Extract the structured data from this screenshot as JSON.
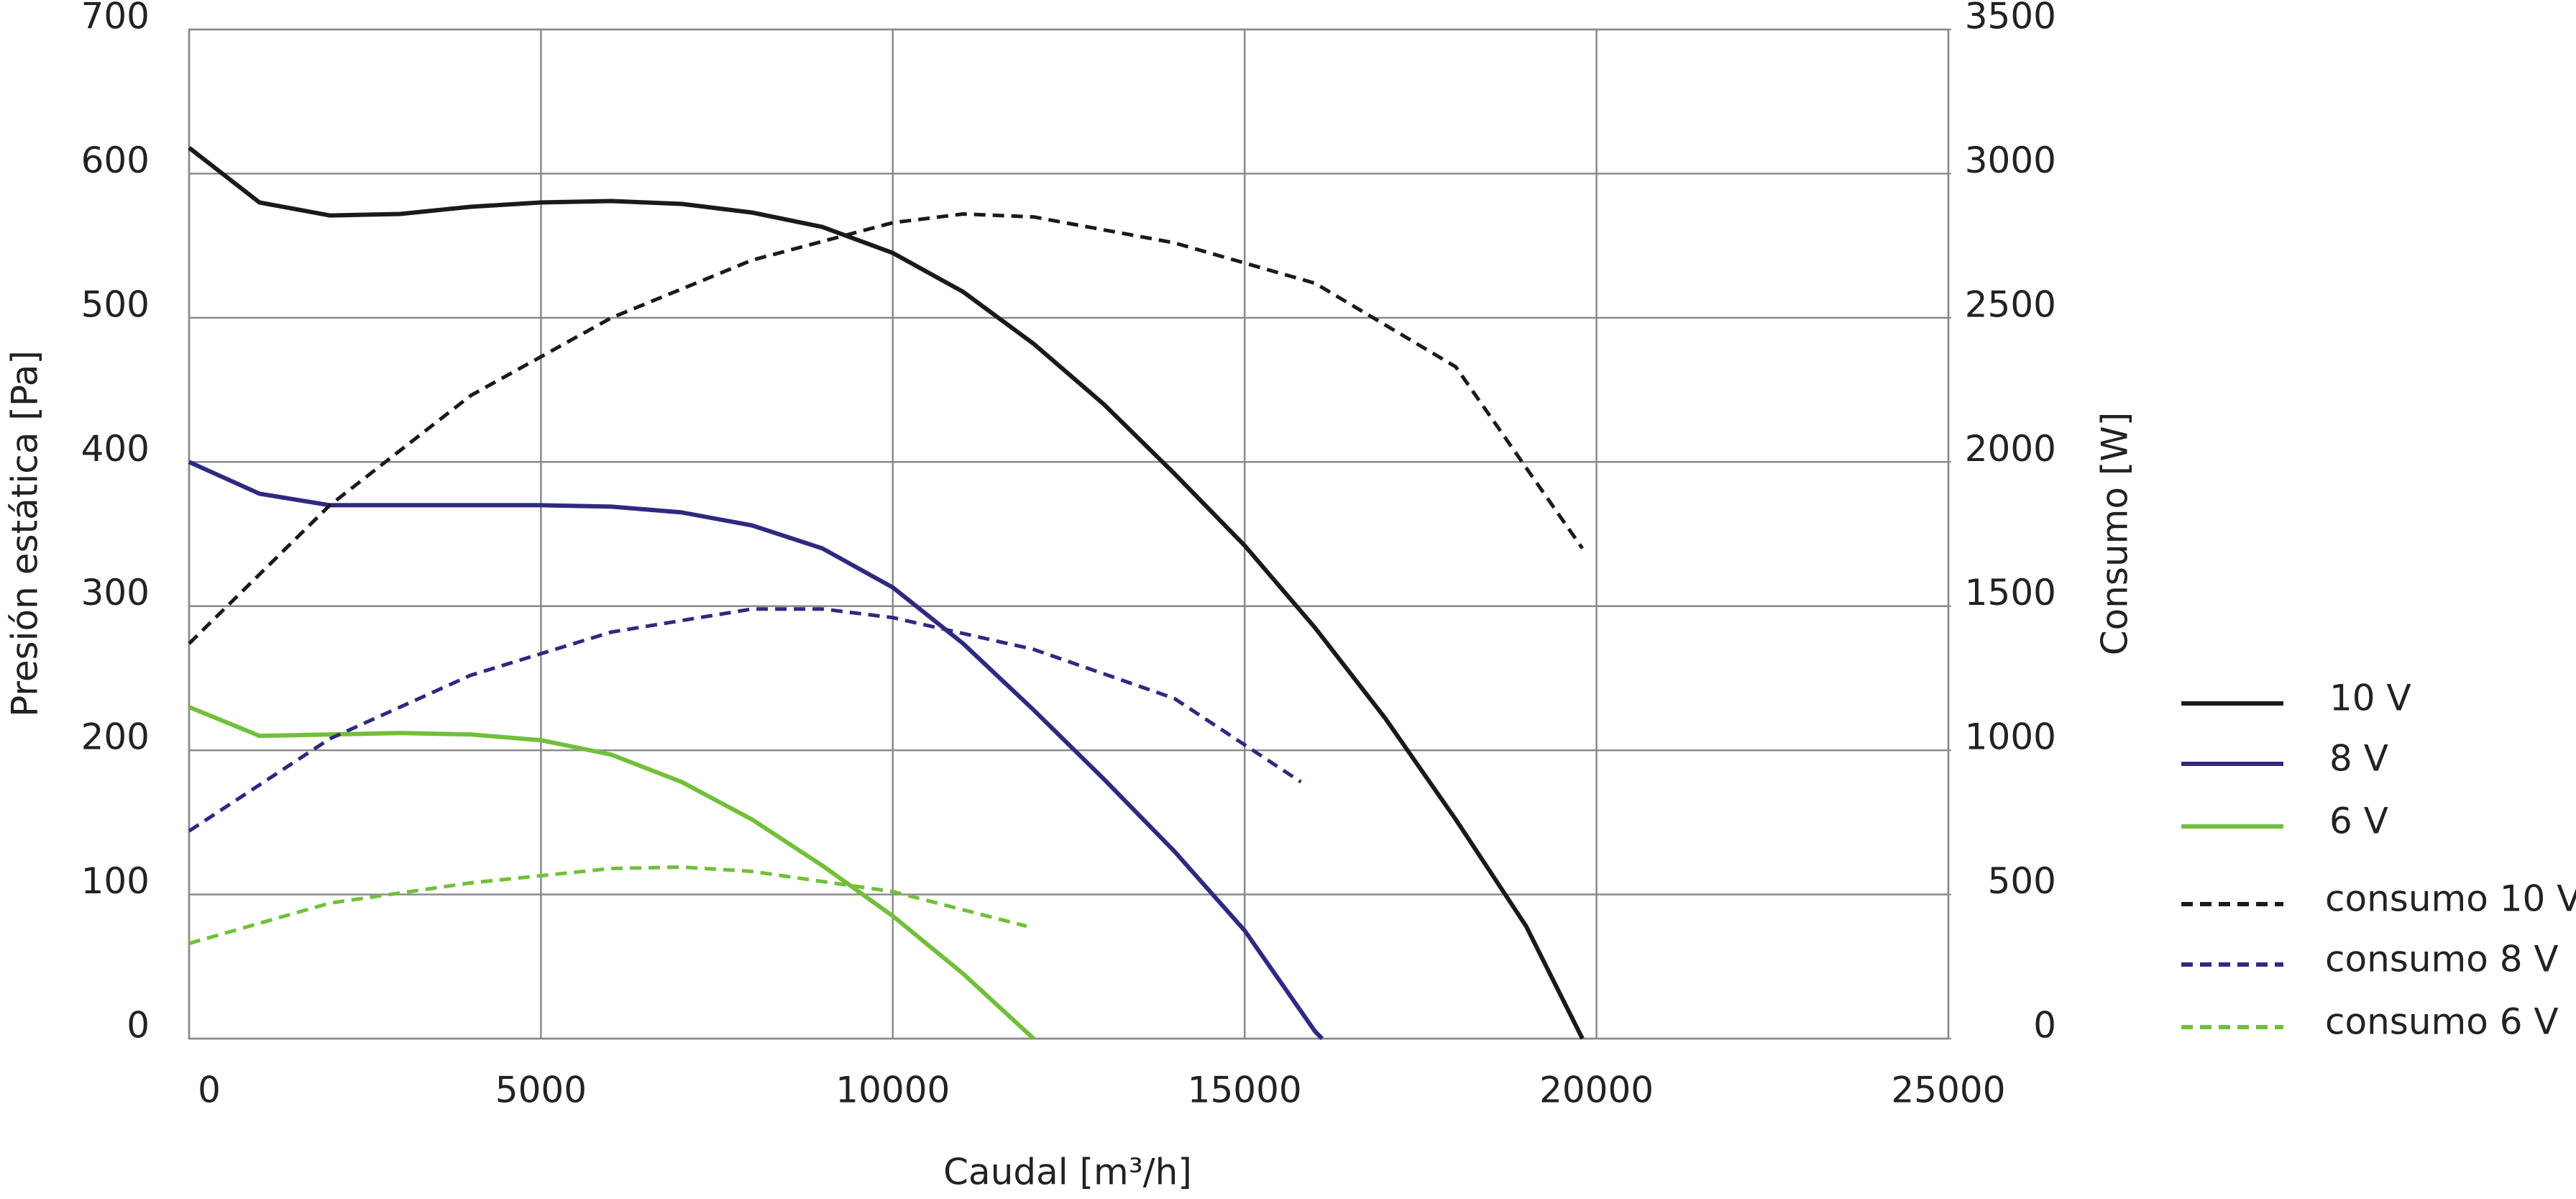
{
  "chart_data": {
    "type": "line",
    "x_label": "Caudal [m³/h]",
    "y_label": "Presión estática [Pa]",
    "y2_label": "Consumo [W]",
    "xlim": [
      0,
      25000
    ],
    "xticks": [
      0,
      5000,
      10000,
      15000,
      20000,
      25000
    ],
    "ylim": [
      0,
      700
    ],
    "yticks": [
      0,
      100,
      200,
      300,
      400,
      500,
      600,
      700
    ],
    "y2lim": [
      0,
      3500
    ],
    "y2ticks": [
      0,
      500,
      1000,
      1500,
      2000,
      2500,
      3000,
      3500
    ],
    "grid": true,
    "legend": "right",
    "series": [
      {
        "name": "10 V",
        "color": "#1a1a1a",
        "dashed": false,
        "x": [
          0,
          1000,
          2000,
          3000,
          4000,
          5000,
          6000,
          7000,
          8000,
          9000,
          10000,
          11000,
          12000,
          13000,
          14000,
          15000,
          16000,
          17000,
          18000,
          19000,
          19800
        ],
        "values": [
          618,
          580,
          571,
          572,
          577,
          580,
          581,
          579,
          573,
          563,
          545,
          518,
          482,
          440,
          392,
          342,
          285,
          222,
          152,
          78,
          0
        ]
      },
      {
        "name": "8 V",
        "color": "#2e2a80",
        "dashed": false,
        "x": [
          0,
          1000,
          2000,
          3000,
          4000,
          5000,
          6000,
          7000,
          8000,
          9000,
          10000,
          11000,
          12000,
          13000,
          14000,
          15000,
          16000,
          16100
        ],
        "values": [
          400,
          378,
          370,
          370,
          370,
          370,
          369,
          365,
          356,
          340,
          313,
          274,
          228,
          180,
          130,
          75,
          5,
          0
        ]
      },
      {
        "name": "6 V",
        "color": "#72bf3a",
        "dashed": false,
        "x": [
          0,
          1000,
          2000,
          3000,
          4000,
          5000,
          6000,
          7000,
          8000,
          9000,
          10000,
          11000,
          12000
        ],
        "values": [
          230,
          210,
          211,
          212,
          211,
          207,
          197,
          178,
          152,
          120,
          85,
          45,
          0
        ]
      },
      {
        "name": "consumo 10 V",
        "color": "#1a1a1a",
        "dashed": true,
        "axis": "y2",
        "x": [
          0,
          2000,
          4000,
          6000,
          8000,
          10000,
          11000,
          12000,
          14000,
          16000,
          18000,
          19800
        ],
        "values": [
          1370,
          1850,
          2230,
          2500,
          2700,
          2830,
          2860,
          2850,
          2760,
          2620,
          2330,
          1700
        ]
      },
      {
        "name": "consumo 8 V",
        "color": "#2e2a80",
        "dashed": true,
        "axis": "y2",
        "x": [
          0,
          2000,
          4000,
          6000,
          8000,
          9000,
          10000,
          12000,
          14000,
          15800
        ],
        "values": [
          720,
          1040,
          1260,
          1410,
          1490,
          1490,
          1460,
          1350,
          1180,
          890
        ]
      },
      {
        "name": "consumo 6 V",
        "color": "#72bf3a",
        "dashed": true,
        "axis": "y2",
        "x": [
          0,
          2000,
          4000,
          6000,
          7000,
          8000,
          10000,
          11900
        ],
        "values": [
          330,
          470,
          540,
          590,
          595,
          580,
          510,
          390
        ]
      }
    ]
  }
}
